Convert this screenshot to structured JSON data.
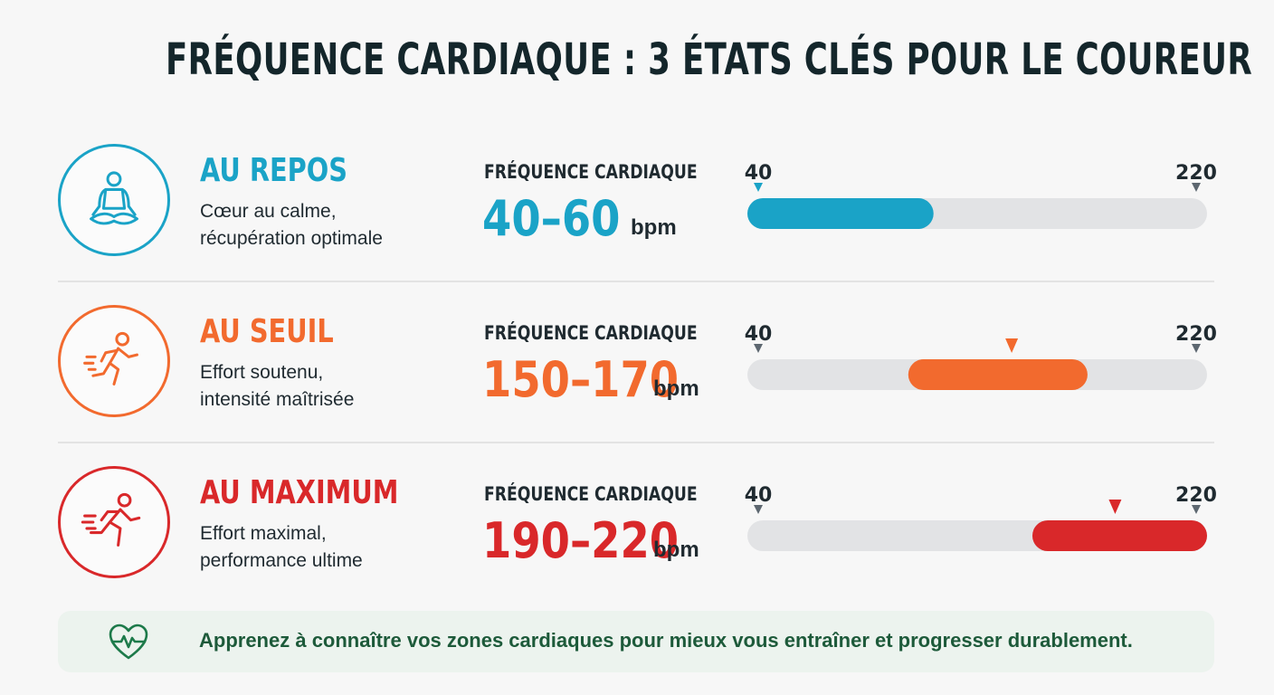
{
  "title": "FRÉQUENCE CARDIAQUE : 3 ÉTATS CLÉS POUR LE COUREUR",
  "hr_label": "FRÉQUENCE CARDIAQUE",
  "unit": "bpm",
  "scale": {
    "min_label": "40",
    "max_label": "220"
  },
  "states": [
    {
      "name": "AU REPOS",
      "desc_line1": "Cœur au calme,",
      "desc_line2": "récupération optimale",
      "range_text": "40–60",
      "icon": "meditation-icon",
      "color": "#1aa3c7"
    },
    {
      "name": "AU SEUIL",
      "desc_line1": "Effort soutenu,",
      "desc_line2": "intensité maîtrisée",
      "range_text": "150–170",
      "icon": "runner-icon",
      "color": "#f26a2e"
    },
    {
      "name": "AU MAXIMUM",
      "desc_line1": "Effort maximal,",
      "desc_line2": "performance ultime",
      "range_text": "190–220",
      "icon": "sprinter-icon",
      "color": "#d9282a"
    }
  ],
  "footer": {
    "text": "Apprenez à connaître vos zones cardiaques pour mieux vous entraîner et progresser durablement.",
    "icon": "heart-pulse-icon",
    "color": "#1d7a4a"
  },
  "chart_data": {
    "type": "bar",
    "orientation": "horizontal-range",
    "axis_min": 40,
    "axis_max": 220,
    "unit": "bpm",
    "categories": [
      "AU REPOS",
      "AU SEUIL",
      "AU MAXIMUM"
    ],
    "ranges": [
      {
        "low": 40,
        "high": 60
      },
      {
        "low": 150,
        "high": 170
      },
      {
        "low": 190,
        "high": 220
      }
    ],
    "colors": [
      "#1aa3c7",
      "#f26a2e",
      "#d9282a"
    ],
    "grid": false
  }
}
